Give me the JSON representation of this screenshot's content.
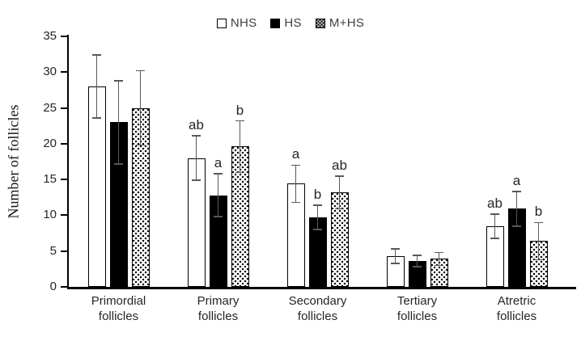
{
  "chart_data": {
    "type": "bar",
    "title": "",
    "ylabel": "Number of follicles",
    "xlabel": "",
    "ylim": [
      0,
      35
    ],
    "yticks": [
      0,
      5,
      10,
      15,
      20,
      25,
      30,
      35
    ],
    "grid": false,
    "legend_position": "top-center",
    "categories": [
      "Primordial follicles",
      "Primary follicles",
      "Secondary follicles",
      "Tertiary follicles",
      "Atretric follicles"
    ],
    "series": [
      {
        "name": "NHS",
        "fill": "white",
        "values": [
          28.0,
          18.0,
          14.4,
          4.3,
          8.5
        ],
        "errors": [
          4.4,
          3.1,
          2.6,
          1.0,
          1.7
        ],
        "letters": [
          "",
          "ab",
          "a",
          "",
          "ab"
        ]
      },
      {
        "name": "HS",
        "fill": "black",
        "values": [
          23.0,
          12.8,
          9.7,
          3.6,
          10.9
        ],
        "errors": [
          5.8,
          3.0,
          1.7,
          0.8,
          2.4
        ],
        "letters": [
          "",
          "a",
          "b",
          "",
          "a"
        ]
      },
      {
        "name": "M+HS",
        "fill": "dotted",
        "values": [
          25.0,
          19.6,
          13.2,
          3.9,
          6.4
        ],
        "errors": [
          5.2,
          3.6,
          2.3,
          0.9,
          2.6
        ],
        "letters": [
          "",
          "b",
          "ab",
          "",
          "b"
        ]
      }
    ],
    "colors": {
      "bar_outline": "#000000",
      "bar_black_fill": "#000000",
      "bar_white_fill": "#ffffff",
      "error_bar": "#595959",
      "axis": "#000000",
      "tick_text": "#262626",
      "legend_text": "#404040",
      "letter_text": "#262626"
    }
  }
}
